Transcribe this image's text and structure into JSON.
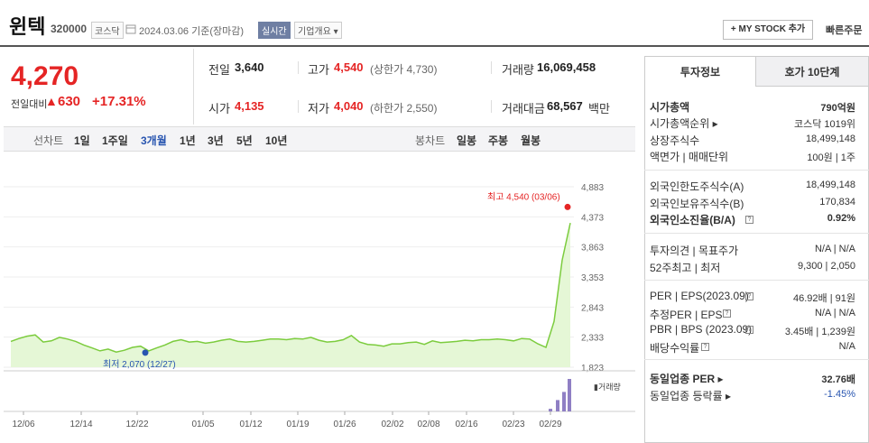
{
  "header": {
    "name": "윈텍",
    "code": "320000",
    "market": "코스닥",
    "date": "2024.03.06 기준(장마감)",
    "realtime": "실시간",
    "company_info": "기업개요 ▾",
    "mystock": "+ MY STOCK 추가",
    "quick_order": "빠른주문"
  },
  "price": {
    "current": "4,270",
    "change_label": "전일대비",
    "change_arrow": "▲",
    "change_amount": "630",
    "change_pct": "+17.31%"
  },
  "summary": {
    "prev_label": "전일",
    "prev": "3,640",
    "high_label": "고가",
    "high": "4,540",
    "upper_limit": "(상한가 4,730)",
    "volume_label": "거래량",
    "volume": "16,069,458",
    "open_label": "시가",
    "open": "4,135",
    "low_label": "저가",
    "low": "4,040",
    "lower_limit": "(하한가 2,550)",
    "amount_label": "거래대금",
    "amount": "68,567",
    "amount_unit": "백만"
  },
  "period_bar": {
    "line_label": "선차트",
    "line_periods": [
      "1일",
      "1주일",
      "3개월",
      "1년",
      "3년",
      "5년",
      "10년"
    ],
    "selected": "3개월",
    "candle_label": "봉차트",
    "candle_periods": [
      "일봉",
      "주봉",
      "월봉"
    ]
  },
  "chart_data": {
    "type": "line",
    "y_ticks": [
      "4,883",
      "4,373",
      "3,863",
      "3,353",
      "2,843",
      "2,333",
      "1,823"
    ],
    "ylim": [
      1823,
      4883
    ],
    "x_ticks": [
      "12/06",
      "12/14",
      "12/22",
      "01/05",
      "01/12",
      "01/19",
      "01/26",
      "02/02",
      "02/08",
      "02/16",
      "02/23",
      "02/29"
    ],
    "series": [
      {
        "values": [
          2260,
          2310,
          2350,
          2370,
          2250,
          2270,
          2330,
          2300,
          2260,
          2200,
          2150,
          2100,
          2130,
          2080,
          2110,
          2160,
          2180,
          2100,
          2150,
          2200,
          2260,
          2290,
          2250,
          2260,
          2230,
          2250,
          2280,
          2300,
          2260,
          2250,
          2260,
          2280,
          2300,
          2300,
          2290,
          2310,
          2300,
          2330,
          2280,
          2250,
          2260,
          2290,
          2360,
          2250,
          2210,
          2200,
          2180,
          2220,
          2220,
          2240,
          2250,
          2210,
          2270,
          2240,
          2250,
          2260,
          2280,
          2270,
          2290,
          2290,
          2300,
          2290,
          2270,
          2310,
          2300,
          2220,
          2160,
          2600,
          3640,
          4270
        ]
      }
    ],
    "high_annotation": "최고 4,540 (03/06)",
    "low_annotation": "최저 2,070 (12/27)",
    "volume_label": "거래량",
    "volume_values": [
      0.08,
      0.35,
      0.6,
      1.0
    ]
  },
  "panel": {
    "tab_invest": "투자정보",
    "tab_hoga": "호가 10단계",
    "rows": [
      {
        "label": "시가총액",
        "value": "790억원",
        "bold": true
      },
      {
        "label": "시가총액순위 ▸",
        "value": "코스닥 1019위"
      },
      {
        "label": "상장주식수",
        "value": "18,499,148"
      },
      {
        "label": "액면가 | 매매단위",
        "value": "100원 | 1주"
      },
      {
        "label": "외국인한도주식수(A)",
        "value": "18,499,148"
      },
      {
        "label": "외국인보유주식수(B)",
        "value": "170,834"
      },
      {
        "label": "외국인소진율(B/A)",
        "value": "0.92%",
        "bold": true
      },
      {
        "label": "투자의견 | 목표주가",
        "value": "N/A | N/A"
      },
      {
        "label": "52주최고 | 최저",
        "value": "9,300 | 2,050"
      },
      {
        "label": "PER | EPS(2023.09)",
        "value": "46.92배 | 91원"
      },
      {
        "label": "추정PER | EPS",
        "value": "N/A | N/A"
      },
      {
        "label": "PBR | BPS (2023.09)",
        "value": "3.45배 | 1,239원"
      },
      {
        "label": "배당수익률",
        "value": "N/A"
      },
      {
        "label": "동일업종 PER ▸",
        "value": "32.76배",
        "bold": true
      },
      {
        "label": "동일업종 등락률 ▸",
        "value": "-1.45%"
      }
    ],
    "colors": {
      "down": "#2855b0"
    }
  },
  "help_mark": "?"
}
